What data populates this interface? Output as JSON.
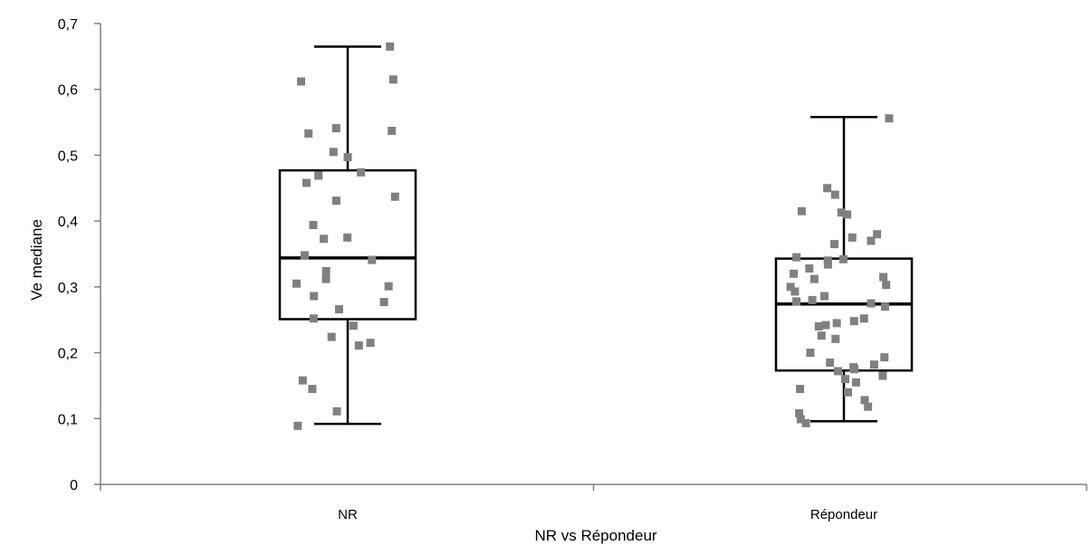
{
  "chart_data": {
    "type": "box",
    "xlabel": "NR vs Répondeur",
    "ylabel": "Ve mediane",
    "ylim": [
      0,
      0.7
    ],
    "yticks": [
      "0",
      "0,1",
      "0,2",
      "0,3",
      "0,4",
      "0,5",
      "0,6",
      "0,7"
    ],
    "ytick_values": [
      0,
      0.1,
      0.2,
      0.3,
      0.4,
      0.5,
      0.6,
      0.7
    ],
    "categories": [
      "NR",
      "Répondeur"
    ],
    "grid": false,
    "legend": "none",
    "colors": {
      "points": "#808080",
      "box": "#000000",
      "axis": "#808080"
    },
    "groups": [
      {
        "category": "NR",
        "whisker_low": 0.092,
        "q1": 0.251,
        "median": 0.344,
        "q3": 0.477,
        "whisker_high": 0.665,
        "points": [
          0.665,
          0.615,
          0.612,
          0.541,
          0.537,
          0.533,
          0.505,
          0.497,
          0.474,
          0.469,
          0.458,
          0.437,
          0.431,
          0.394,
          0.375,
          0.373,
          0.348,
          0.341,
          0.324,
          0.312,
          0.305,
          0.301,
          0.286,
          0.277,
          0.266,
          0.252,
          0.241,
          0.224,
          0.215,
          0.211,
          0.158,
          0.145,
          0.111,
          0.089
        ]
      },
      {
        "category": "Répondeur",
        "whisker_low": 0.096,
        "q1": 0.173,
        "median": 0.274,
        "q3": 0.343,
        "whisker_high": 0.558,
        "points": [
          0.556,
          0.45,
          0.44,
          0.415,
          0.413,
          0.41,
          0.38,
          0.375,
          0.37,
          0.365,
          0.345,
          0.342,
          0.34,
          0.334,
          0.328,
          0.32,
          0.315,
          0.312,
          0.303,
          0.3,
          0.293,
          0.286,
          0.28,
          0.278,
          0.275,
          0.27,
          0.252,
          0.248,
          0.245,
          0.242,
          0.24,
          0.226,
          0.221,
          0.2,
          0.193,
          0.185,
          0.182,
          0.178,
          0.175,
          0.172,
          0.165,
          0.16,
          0.155,
          0.145,
          0.14,
          0.128,
          0.118,
          0.108,
          0.099,
          0.093
        ]
      }
    ]
  }
}
